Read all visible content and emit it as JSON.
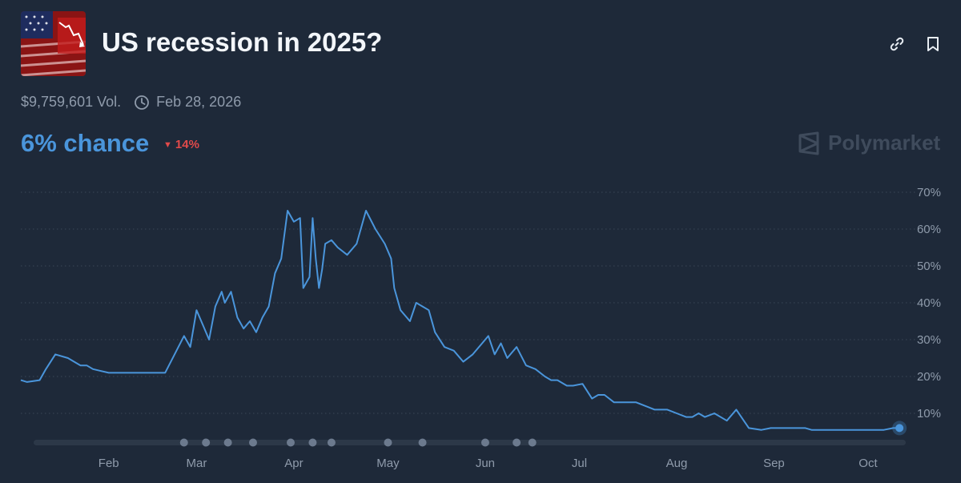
{
  "market": {
    "title": "US recession in 2025?",
    "volume": "$9,759,601 Vol.",
    "end_date": "Feb 28, 2026",
    "chance": "6% chance",
    "delta": "14%",
    "brand": "Polymarket",
    "icons": {
      "thumbnail": "us-flag-recession-thumbnail",
      "link": "link-icon",
      "bookmark": "bookmark-icon",
      "clock": "clock-icon",
      "delta": "triangle-down-icon",
      "brand": "polymarket-logo-icon"
    }
  },
  "colors": {
    "background": "#1e2939",
    "line": "#4a95db",
    "chance": "#4a95db",
    "delta_down": "#e24a4a",
    "muted": "#8f9bab"
  },
  "chart_data": {
    "type": "line",
    "title": "",
    "xlabel": "",
    "ylabel": "",
    "ylim": [
      0,
      70
    ],
    "yticks": [
      10,
      20,
      30,
      40,
      50,
      60,
      70
    ],
    "ytick_labels": [
      "10%",
      "20%",
      "30%",
      "40%",
      "50%",
      "60%",
      "70%"
    ],
    "y_axis_side": "right",
    "xtick_labels": [
      "Feb",
      "Mar",
      "Apr",
      "May",
      "Jun",
      "Jul",
      "Aug",
      "Sep",
      "Oct"
    ],
    "xtick_dates": [
      "2025-02-01",
      "2025-03-01",
      "2025-04-01",
      "2025-05-01",
      "2025-06-01",
      "2025-07-01",
      "2025-08-01",
      "2025-09-01",
      "2025-10-01"
    ],
    "xlim": [
      "2025-01-04",
      "2025-10-13"
    ],
    "grid": true,
    "series": [
      {
        "x": [
          "2025-01-04",
          "2025-01-06",
          "2025-01-10",
          "2025-01-12",
          "2025-01-15",
          "2025-01-19",
          "2025-01-21",
          "2025-01-23",
          "2025-01-25",
          "2025-01-27",
          "2025-02-01",
          "2025-02-05",
          "2025-02-08",
          "2025-02-10",
          "2025-02-13",
          "2025-02-16",
          "2025-02-19",
          "2025-02-25",
          "2025-02-27",
          "2025-03-01",
          "2025-03-03",
          "2025-03-05",
          "2025-03-07",
          "2025-03-09",
          "2025-03-10",
          "2025-03-12",
          "2025-03-14",
          "2025-03-16",
          "2025-03-18",
          "2025-03-20",
          "2025-03-22",
          "2025-03-24",
          "2025-03-26",
          "2025-03-28",
          "2025-03-30",
          "2025-04-01",
          "2025-04-03",
          "2025-04-04",
          "2025-04-06",
          "2025-04-07",
          "2025-04-08",
          "2025-04-09",
          "2025-04-10",
          "2025-04-11",
          "2025-04-13",
          "2025-04-15",
          "2025-04-18",
          "2025-04-21",
          "2025-04-24",
          "2025-04-27",
          "2025-04-30",
          "2025-05-02",
          "2025-05-03",
          "2025-05-05",
          "2025-05-08",
          "2025-05-10",
          "2025-05-12",
          "2025-05-14",
          "2025-05-16",
          "2025-05-19",
          "2025-05-22",
          "2025-05-25",
          "2025-05-28",
          "2025-05-31",
          "2025-06-02",
          "2025-06-04",
          "2025-06-06",
          "2025-06-08",
          "2025-06-11",
          "2025-06-14",
          "2025-06-17",
          "2025-06-20",
          "2025-06-22",
          "2025-06-24",
          "2025-06-27",
          "2025-06-29",
          "2025-07-02",
          "2025-07-05",
          "2025-07-07",
          "2025-07-09",
          "2025-07-12",
          "2025-07-15",
          "2025-07-19",
          "2025-07-22",
          "2025-07-25",
          "2025-07-29",
          "2025-08-01",
          "2025-08-04",
          "2025-08-06",
          "2025-08-08",
          "2025-08-10",
          "2025-08-13",
          "2025-08-17",
          "2025-08-20",
          "2025-08-24",
          "2025-08-28",
          "2025-08-31",
          "2025-09-02",
          "2025-09-05",
          "2025-09-08",
          "2025-09-11",
          "2025-09-13",
          "2025-09-15",
          "2025-09-17",
          "2025-09-20",
          "2025-09-24",
          "2025-09-28",
          "2025-10-02",
          "2025-10-06",
          "2025-10-09",
          "2025-10-11"
        ],
        "y": [
          19,
          18.5,
          19,
          22,
          26,
          25,
          24,
          23,
          23,
          22,
          21,
          21,
          21,
          21,
          21,
          21,
          21,
          31,
          28,
          38,
          34,
          30,
          39,
          43,
          40,
          43,
          36,
          33,
          35,
          32,
          36,
          39,
          48,
          52,
          65,
          62,
          63,
          44,
          47,
          63,
          52,
          44,
          49,
          56,
          57,
          55,
          53,
          56,
          65,
          60,
          56,
          52,
          44,
          38,
          35,
          40,
          39,
          38,
          32,
          28,
          27,
          24,
          26,
          29,
          31,
          26,
          29,
          25,
          28,
          23,
          22,
          20,
          19,
          19,
          17.5,
          17.5,
          18,
          14,
          15,
          15,
          13,
          13,
          13,
          12,
          11,
          11,
          10,
          9,
          9,
          10,
          9,
          10,
          8,
          11,
          6,
          5.5,
          6,
          6,
          6,
          6,
          6,
          5.5,
          5.5,
          5.5,
          5.5,
          5.5,
          5.5,
          5.5,
          5.5,
          6,
          6
        ]
      }
    ],
    "last_point": {
      "x": "2025-10-11",
      "y": 6
    },
    "timeline_markers": [
      "2025-02-25",
      "2025-03-04",
      "2025-03-11",
      "2025-03-19",
      "2025-03-31",
      "2025-04-07",
      "2025-04-13",
      "2025-05-01",
      "2025-05-12",
      "2025-06-01",
      "2025-06-11",
      "2025-06-16"
    ]
  }
}
